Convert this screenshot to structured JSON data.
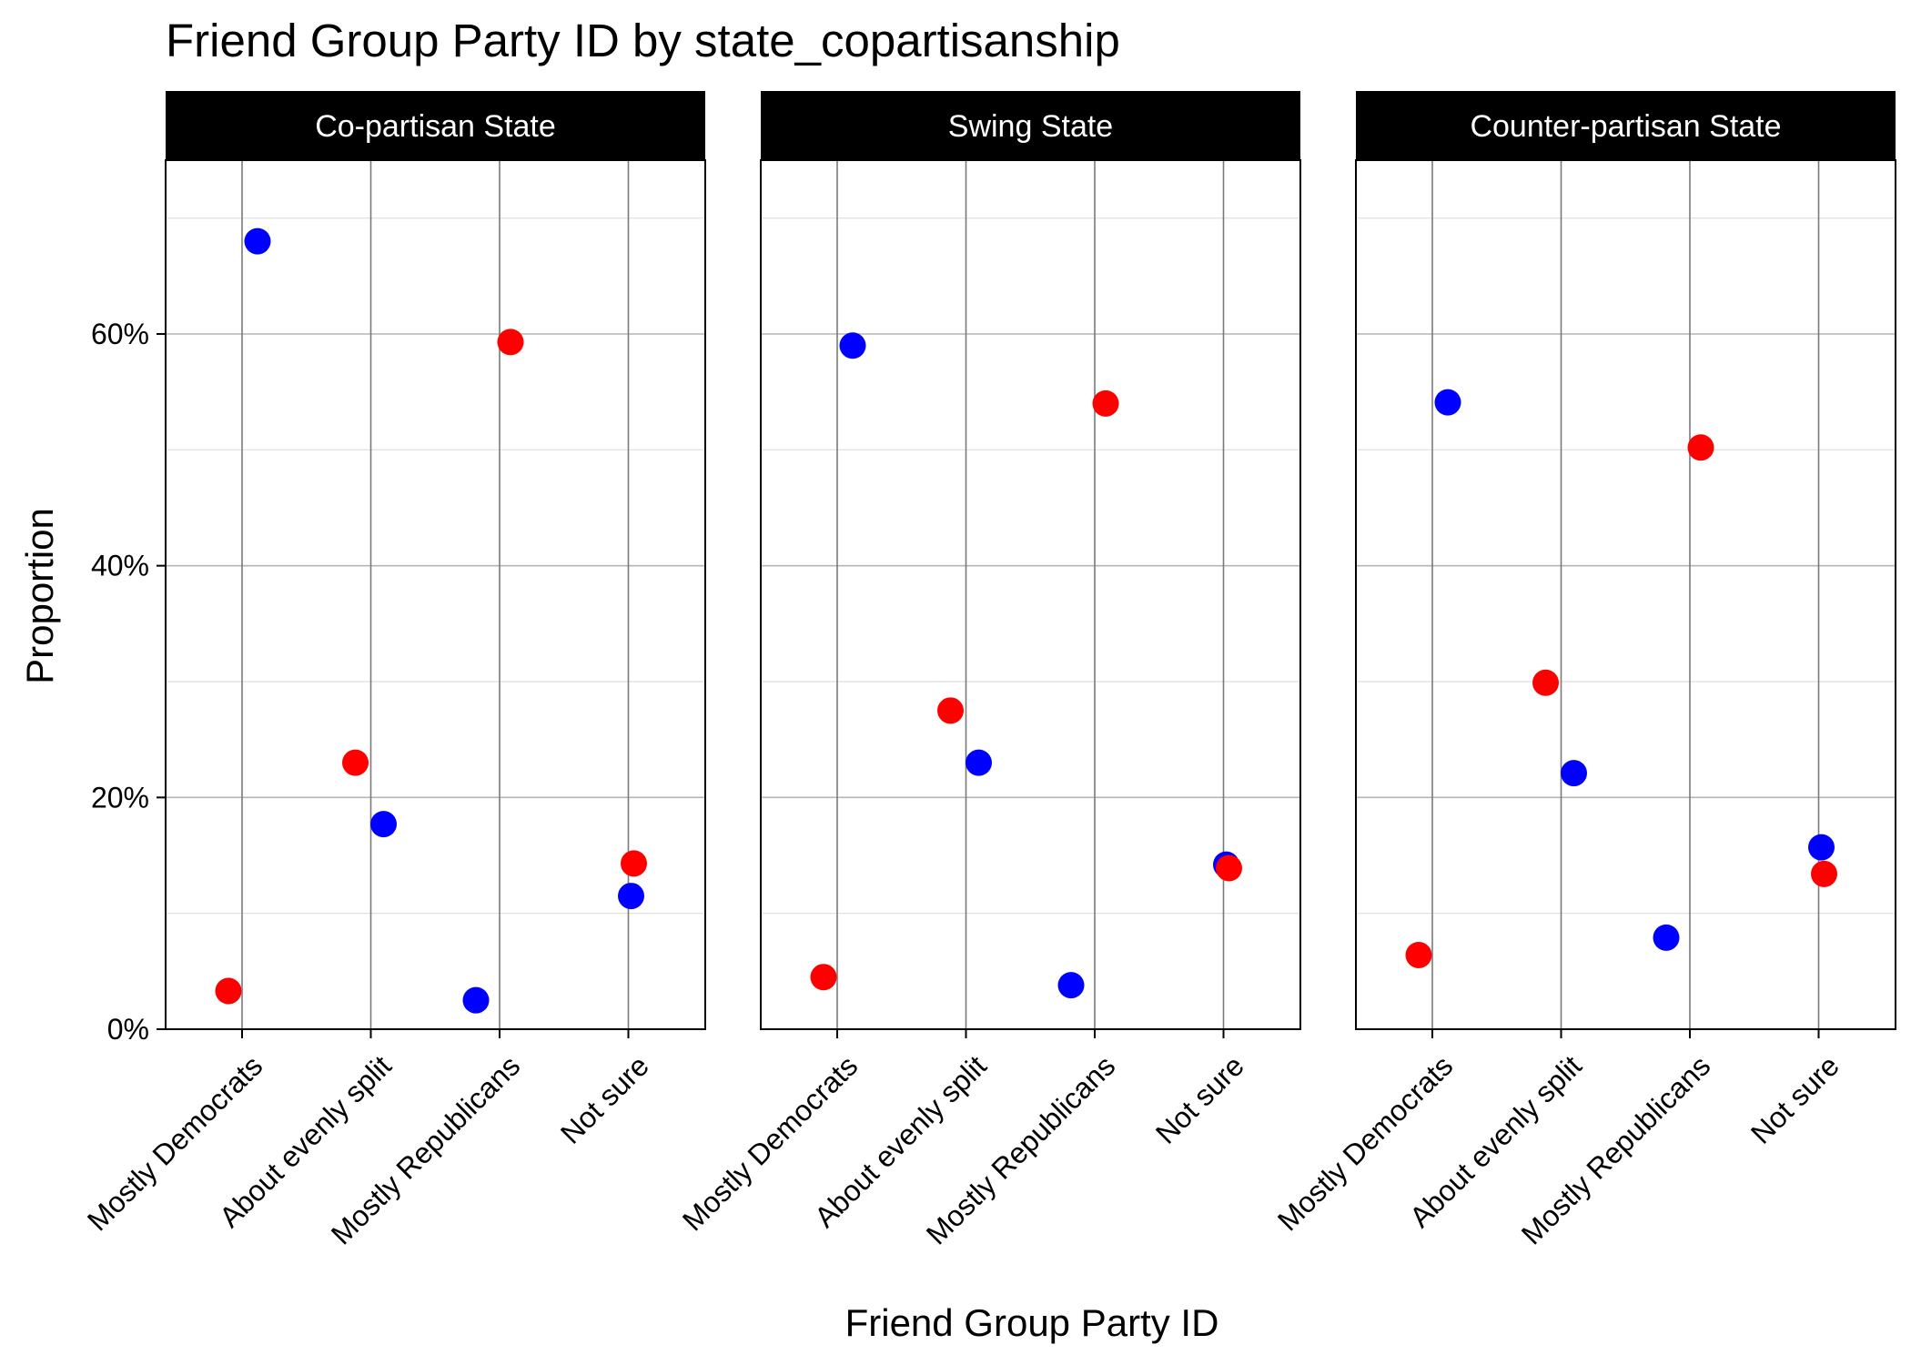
{
  "chart_data": {
    "type": "scatter",
    "title": "Friend Group Party ID by state_copartisanship",
    "xlabel": "Friend Group Party ID",
    "ylabel": "Proportion",
    "categories": [
      "Mostly Democrats",
      "About evenly split",
      "Mostly Republicans",
      "Not sure"
    ],
    "ylim": [
      0,
      0.75
    ],
    "yticks": [
      0,
      0.2,
      0.4,
      0.6
    ],
    "ytick_labels": [
      "0%",
      "20%",
      "40%",
      "60%"
    ],
    "grid": true,
    "legend": "none",
    "series_colors": {
      "blue": "#0000ff",
      "red": "#ff0000"
    },
    "panels": [
      {
        "label": "Co-partisan State",
        "points": [
          {
            "category": "Mostly Democrats",
            "color": "blue",
            "value": 0.68
          },
          {
            "category": "Mostly Democrats",
            "color": "red",
            "value": 0.033
          },
          {
            "category": "About evenly split",
            "color": "red",
            "value": 0.23
          },
          {
            "category": "About evenly split",
            "color": "blue",
            "value": 0.177
          },
          {
            "category": "Mostly Republicans",
            "color": "red",
            "value": 0.593
          },
          {
            "category": "Mostly Republicans",
            "color": "blue",
            "value": 0.025
          },
          {
            "category": "Not sure",
            "color": "red",
            "value": 0.143
          },
          {
            "category": "Not sure",
            "color": "blue",
            "value": 0.115
          }
        ]
      },
      {
        "label": "Swing State",
        "points": [
          {
            "category": "Mostly Democrats",
            "color": "blue",
            "value": 0.59
          },
          {
            "category": "Mostly Democrats",
            "color": "red",
            "value": 0.045
          },
          {
            "category": "About evenly split",
            "color": "red",
            "value": 0.275
          },
          {
            "category": "About evenly split",
            "color": "blue",
            "value": 0.23
          },
          {
            "category": "Mostly Republicans",
            "color": "red",
            "value": 0.54
          },
          {
            "category": "Mostly Republicans",
            "color": "blue",
            "value": 0.038
          },
          {
            "category": "Not sure",
            "color": "blue",
            "value": 0.142
          },
          {
            "category": "Not sure",
            "color": "red",
            "value": 0.139
          }
        ]
      },
      {
        "label": "Counter-partisan State",
        "points": [
          {
            "category": "Mostly Democrats",
            "color": "blue",
            "value": 0.541
          },
          {
            "category": "Mostly Democrats",
            "color": "red",
            "value": 0.064
          },
          {
            "category": "About evenly split",
            "color": "red",
            "value": 0.299
          },
          {
            "category": "About evenly split",
            "color": "blue",
            "value": 0.221
          },
          {
            "category": "Mostly Republicans",
            "color": "red",
            "value": 0.502
          },
          {
            "category": "Mostly Republicans",
            "color": "blue",
            "value": 0.079
          },
          {
            "category": "Not sure",
            "color": "blue",
            "value": 0.157
          },
          {
            "category": "Not sure",
            "color": "red",
            "value": 0.134
          }
        ]
      }
    ]
  }
}
